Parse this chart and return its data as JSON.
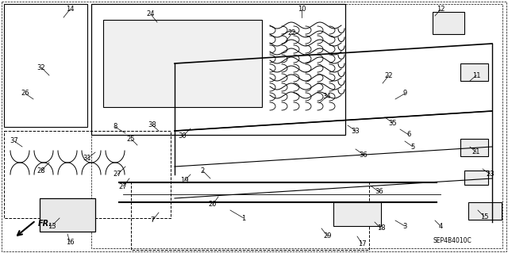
{
  "fig_width": 6.4,
  "fig_height": 3.19,
  "dpi": 100,
  "bg_color": "#ffffff",
  "image_b64": ""
}
